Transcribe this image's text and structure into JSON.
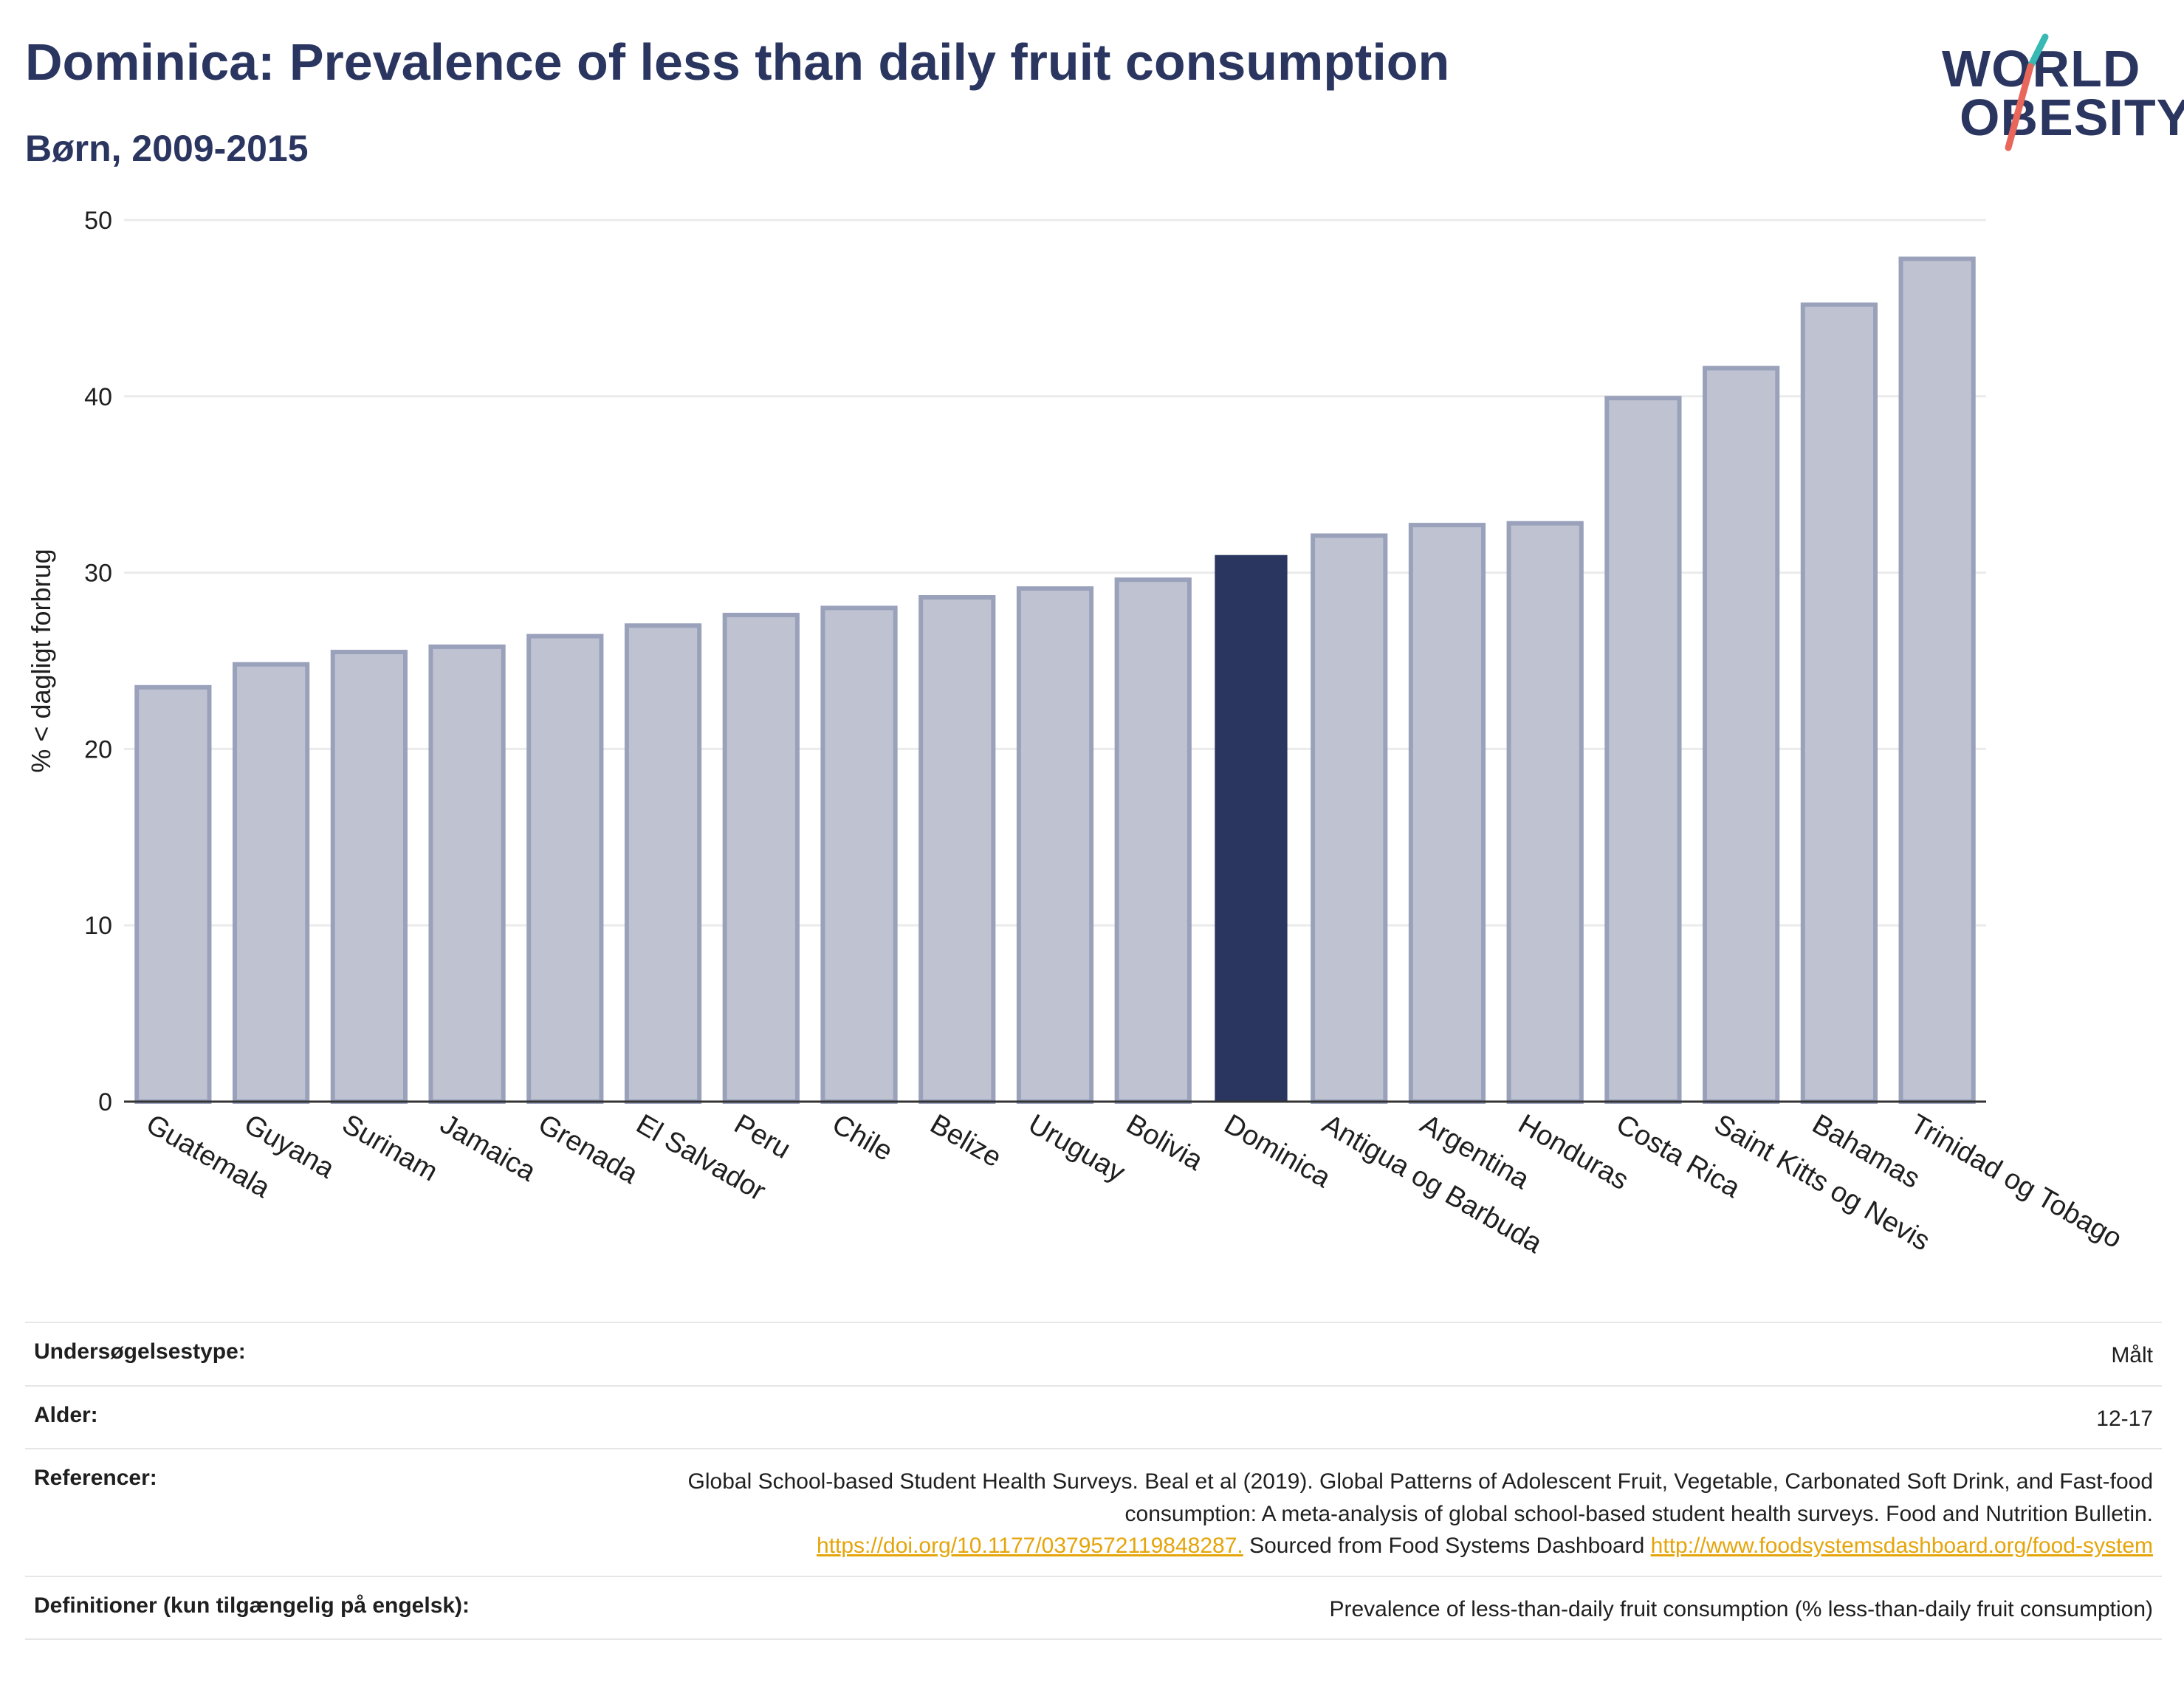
{
  "header": {
    "title": "Dominica: Prevalence of less than daily fruit consumption",
    "subtitle": "Børn, 2009-2015"
  },
  "logo": {
    "line1": "WORLD",
    "line2": "OBESITY",
    "colors": {
      "text": "#2a3560",
      "slash_top": "#38b9b3",
      "slash_bottom": "#e8675a"
    }
  },
  "colors": {
    "bar": "#bfc3d1",
    "bar_outline": "#9aa1bb",
    "highlight": "#2a3560",
    "grid": "#ebebeb",
    "axis": "#333333",
    "link": "#e5a50a"
  },
  "chart_data": {
    "type": "bar",
    "title": "Dominica: Prevalence of less than daily fruit consumption",
    "subtitle": "Børn, 2009-2015",
    "ylabel": "% < dagligt forbrug",
    "xlabel": "",
    "ylim": [
      0,
      50
    ],
    "yticks": [
      0,
      10,
      20,
      30,
      40,
      50
    ],
    "grid": true,
    "highlight": "Dominica",
    "categories": [
      "Guatemala",
      "Guyana",
      "Surinam",
      "Jamaica",
      "Grenada",
      "El Salvador",
      "Peru",
      "Chile",
      "Belize",
      "Uruguay",
      "Bolivia",
      "Dominica",
      "Antigua og Barbuda",
      "Argentina",
      "Honduras",
      "Costa Rica",
      "Saint Kitts og Nevis",
      "Bahamas",
      "Trinidad og Tobago"
    ],
    "values": [
      23.5,
      24.8,
      25.5,
      25.8,
      26.4,
      27.0,
      27.6,
      28.0,
      28.6,
      29.1,
      29.6,
      31.0,
      32.1,
      32.7,
      32.8,
      39.9,
      41.6,
      45.2,
      47.8
    ]
  },
  "meta": [
    {
      "label": "Undersøgelsestype:",
      "value": "Målt"
    },
    {
      "label": "Alder:",
      "value": "12-17"
    },
    {
      "label": "Referencer:",
      "value": "Global School-based Student Health Surveys. Beal et al (2019). Global Patterns of Adolescent Fruit, Vegetable, Carbonated Soft Drink, and Fast-food consumption: A meta-analysis of global school-based student health surveys. Food and Nutrition Bulletin.",
      "link1": "https://doi.org/10.1177/0379572119848287.",
      "middle": " Sourced from Food Systems Dashboard ",
      "link2": "http://www.foodsystemsdashboard.org/food-system"
    },
    {
      "label": "Definitioner (kun tilgængelig på engelsk):",
      "value": "Prevalence of less-than-daily fruit consumption (% less-than-daily fruit consumption)"
    }
  ]
}
